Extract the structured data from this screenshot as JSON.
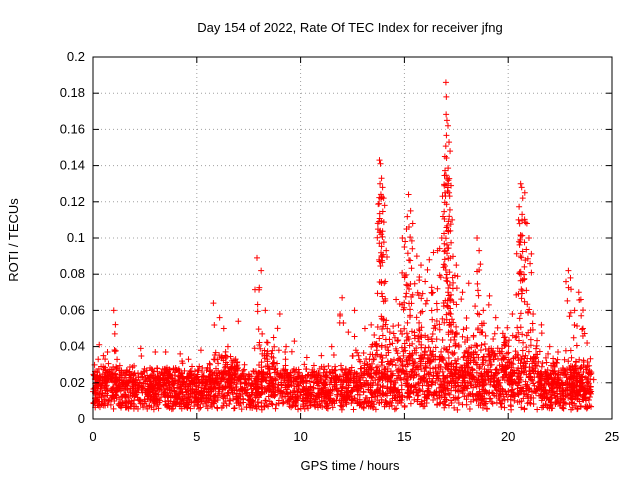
{
  "chart_data": {
    "type": "scatter",
    "title": "Day 154 of 2022, Rate Of TEC Index for receiver jfng",
    "xlabel": "GPS time / hours",
    "ylabel": "ROTI / TECUs",
    "xlim": [
      0,
      25
    ],
    "ylim": [
      0,
      0.2
    ],
    "x_ticks": [
      0,
      5,
      10,
      15,
      20,
      25
    ],
    "y_ticks": [
      0,
      0.02,
      0.04,
      0.06,
      0.08,
      0.1,
      0.12,
      0.14,
      0.16,
      0.18,
      0.2
    ],
    "x_tick_labels": [
      "0",
      "5",
      "10",
      "15",
      "20",
      "25"
    ],
    "y_tick_labels": [
      "0",
      "0.02",
      "0.04",
      "0.06",
      "0.08",
      "0.1",
      "0.12",
      "0.14",
      "0.16",
      "0.18",
      "0.2"
    ],
    "grid": true,
    "marker": "+",
    "color": "#ff0000",
    "data_x_range": [
      0,
      24
    ],
    "series": [
      {
        "name": "ROTI",
        "points": [
          [
            0.1,
            0.022
          ],
          [
            0.3,
            0.041
          ],
          [
            0.5,
            0.035
          ],
          [
            0.7,
            0.037
          ],
          [
            1.0,
            0.06
          ],
          [
            1.05,
            0.047
          ],
          [
            2.3,
            0.039
          ],
          [
            3.0,
            0.037
          ],
          [
            3.5,
            0.037
          ],
          [
            4.2,
            0.036
          ],
          [
            4.6,
            0.033
          ],
          [
            5.2,
            0.038
          ],
          [
            5.8,
            0.064
          ],
          [
            6.1,
            0.056
          ],
          [
            6.3,
            0.05
          ],
          [
            6.5,
            0.04
          ],
          [
            7.0,
            0.054
          ],
          [
            7.3,
            0.03
          ],
          [
            7.9,
            0.089
          ],
          [
            8.1,
            0.082
          ],
          [
            8.3,
            0.06
          ],
          [
            8.7,
            0.045
          ],
          [
            9.0,
            0.058
          ],
          [
            9.3,
            0.04
          ],
          [
            9.7,
            0.043
          ],
          [
            10.3,
            0.034
          ],
          [
            11.0,
            0.035
          ],
          [
            11.5,
            0.04
          ],
          [
            12.0,
            0.067
          ],
          [
            12.3,
            0.048
          ],
          [
            12.6,
            0.06
          ],
          [
            13.1,
            0.05
          ],
          [
            13.4,
            0.052
          ],
          [
            13.8,
            0.143
          ],
          [
            13.85,
            0.141
          ],
          [
            13.9,
            0.133
          ],
          [
            13.95,
            0.128
          ],
          [
            14.0,
            0.122
          ],
          [
            14.05,
            0.118
          ],
          [
            13.9,
            0.09
          ],
          [
            14.0,
            0.065
          ],
          [
            14.3,
            0.048
          ],
          [
            14.6,
            0.066
          ],
          [
            14.9,
            0.1
          ],
          [
            15.0,
            0.095
          ],
          [
            15.1,
            0.105
          ],
          [
            15.2,
            0.124
          ],
          [
            15.3,
            0.115
          ],
          [
            15.4,
            0.108
          ],
          [
            15.6,
            0.09
          ],
          [
            15.8,
            0.085
          ],
          [
            16.0,
            0.076
          ],
          [
            16.2,
            0.088
          ],
          [
            16.4,
            0.092
          ],
          [
            16.6,
            0.093
          ],
          [
            16.8,
            0.1
          ],
          [
            16.95,
            0.145
          ],
          [
            17.0,
            0.186
          ],
          [
            17.02,
            0.178
          ],
          [
            17.05,
            0.165
          ],
          [
            17.1,
            0.162
          ],
          [
            17.15,
            0.153
          ],
          [
            17.2,
            0.148
          ],
          [
            17.1,
            0.13
          ],
          [
            17.15,
            0.125
          ],
          [
            17.3,
            0.11
          ],
          [
            17.5,
            0.085
          ],
          [
            17.8,
            0.07
          ],
          [
            18.1,
            0.075
          ],
          [
            18.5,
            0.1
          ],
          [
            18.6,
            0.093
          ],
          [
            18.8,
            0.06
          ],
          [
            19.1,
            0.068
          ],
          [
            19.4,
            0.056
          ],
          [
            19.8,
            0.045
          ],
          [
            20.2,
            0.058
          ],
          [
            20.5,
            0.11
          ],
          [
            20.6,
            0.13
          ],
          [
            20.65,
            0.128
          ],
          [
            20.7,
            0.122
          ],
          [
            20.8,
            0.125
          ],
          [
            20.9,
            0.108
          ],
          [
            21.0,
            0.1
          ],
          [
            20.6,
            0.09
          ],
          [
            21.2,
            0.058
          ],
          [
            21.6,
            0.052
          ],
          [
            22.0,
            0.04
          ],
          [
            22.4,
            0.037
          ],
          [
            22.9,
            0.082
          ],
          [
            23.0,
            0.078
          ],
          [
            23.2,
            0.06
          ],
          [
            23.4,
            0.07
          ],
          [
            23.5,
            0.066
          ],
          [
            23.6,
            0.05
          ],
          [
            23.8,
            0.042
          ],
          [
            24.0,
            0.025
          ]
        ],
        "baseline_notes": "Dense band of points between ~0.005 and ~0.030 TECU/s across all hours 0-24, with elevated spread to ~0.05-0.10 between hours 13 and 22."
      }
    ]
  }
}
